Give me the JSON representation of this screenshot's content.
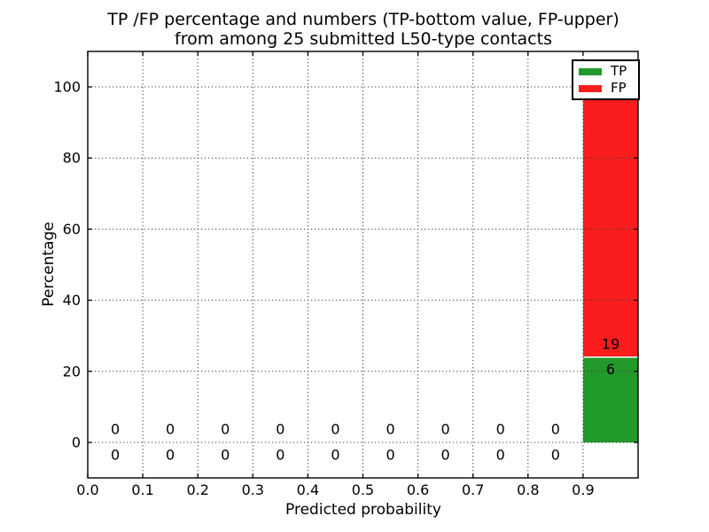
{
  "chart_data": {
    "type": "bar",
    "stacked": true,
    "title_lines": [
      "TP /FP percentage and numbers (TP-bottom value, FP-upper)",
      "from among 25 submitted L50-type contacts"
    ],
    "xlabel": "Predicted probability",
    "ylabel": "Percentage",
    "total_submitted": 25,
    "xlim": [
      0.0,
      1.0
    ],
    "ylim": [
      -10.25,
      110
    ],
    "xtick_values": [
      0.0,
      0.1,
      0.2,
      0.3,
      0.4,
      0.5,
      0.6,
      0.7,
      0.8,
      0.9
    ],
    "xtick_labels": [
      "0.0",
      "0.1",
      "0.2",
      "0.3",
      "0.4",
      "0.5",
      "0.6",
      "0.7",
      "0.8",
      "0.9"
    ],
    "ytick_values": [
      0,
      20,
      40,
      60,
      80,
      100
    ],
    "ytick_labels": [
      "0",
      "20",
      "40",
      "60",
      "80",
      "100"
    ],
    "grid": true,
    "grid_style": "dotted",
    "grid_color": "#3a3a3a",
    "bin_width": 0.1,
    "categories": [
      0.05,
      0.15,
      0.25,
      0.35,
      0.45,
      0.55,
      0.65,
      0.75,
      0.85,
      0.95
    ],
    "series": [
      {
        "name": "TP",
        "color": "#22992b",
        "counts": [
          0,
          0,
          0,
          0,
          0,
          0,
          0,
          0,
          0,
          6
        ],
        "percent": [
          0,
          0,
          0,
          0,
          0,
          0,
          0,
          0,
          0,
          24
        ]
      },
      {
        "name": "FP",
        "color": "#fb1d1d",
        "counts": [
          0,
          0,
          0,
          0,
          0,
          0,
          0,
          0,
          0,
          19
        ],
        "percent": [
          0,
          0,
          0,
          0,
          0,
          0,
          0,
          0,
          0,
          76
        ]
      }
    ],
    "bar_labels": {
      "upper_series": "FP",
      "lower_series": "TP"
    },
    "label_offset_pct": {
      "upper": 3.7,
      "lower": -3.45
    },
    "legend": {
      "position": "upper right",
      "entries": [
        {
          "label": "TP",
          "color": "#22992b"
        },
        {
          "label": "FP",
          "color": "#fb1d1d"
        }
      ]
    }
  }
}
